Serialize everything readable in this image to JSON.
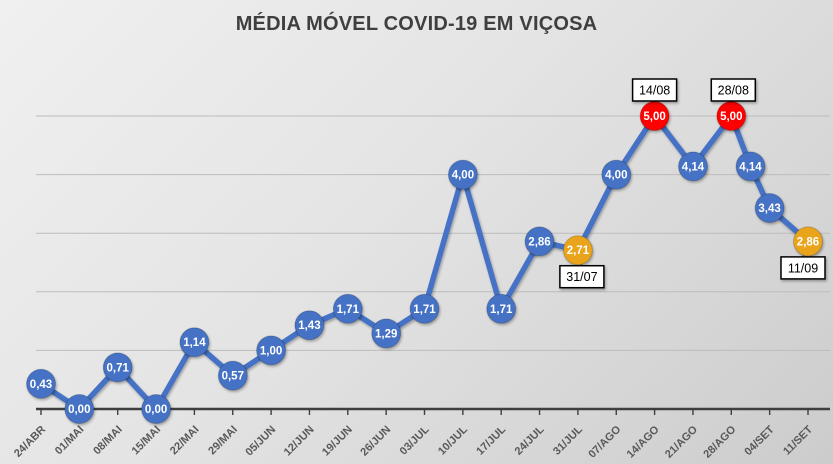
{
  "title": "MÉDIA MÓVEL COVID-19 EM VIÇOSA",
  "colors": {
    "background_light": "#f0f0f0",
    "background_dark": "#cccccc",
    "title_text": "#3f3f3f",
    "line": "#4472C4",
    "marker_blue": "#4472C4",
    "marker_red": "#FF0000",
    "marker_orange": "#E9A41A",
    "point_label": "#FFFFFF",
    "axis": "#3f3f3f",
    "axis_text": "#595959",
    "gridline": "#bcbcbc",
    "leader": "#666666",
    "callout_bg": "#FFFFFF",
    "callout_border": "#000000",
    "callout_text": "#000000"
  },
  "chart_data": {
    "type": "line",
    "title": "MÉDIA MÓVEL COVID-19 EM VIÇOSA",
    "xlabel": "",
    "ylabel": "",
    "ylim": [
      0,
      6
    ],
    "grid": "horizontal",
    "gridlines_at": [
      1,
      2,
      3,
      4,
      5
    ],
    "legend": "none",
    "x_tick_labels": [
      "24/ABR",
      "01/MAI",
      "08/MAI",
      "15/MAI",
      "22/MAI",
      "29/MAI",
      "05/JUN",
      "12/JUN",
      "19/JUN",
      "26/JUN",
      "03/JUL",
      "10/JUL",
      "17/JUL",
      "24/JUL",
      "31/JUL",
      "07/AGO",
      "14/AGO",
      "21/AGO",
      "28/AGO",
      "04/SET",
      "11/SET"
    ],
    "series": [
      {
        "name": "média móvel COVID-19",
        "points": [
          {
            "x": 0,
            "value": 0.43,
            "label": "0,43",
            "color": "blue"
          },
          {
            "x": 1,
            "value": 0.0,
            "label": "0,00",
            "color": "blue"
          },
          {
            "x": 2,
            "value": 0.71,
            "label": "0,71",
            "color": "blue"
          },
          {
            "x": 3,
            "value": 0.0,
            "label": "0,00",
            "color": "blue"
          },
          {
            "x": 4,
            "value": 1.14,
            "label": "1,14",
            "color": "blue"
          },
          {
            "x": 5,
            "value": 0.57,
            "label": "0,57",
            "color": "blue"
          },
          {
            "x": 6,
            "value": 1.0,
            "label": "1,00",
            "color": "blue"
          },
          {
            "x": 7,
            "value": 1.43,
            "label": "1,43",
            "color": "blue"
          },
          {
            "x": 8,
            "value": 1.71,
            "label": "1,71",
            "color": "blue"
          },
          {
            "x": 9,
            "value": 1.29,
            "label": "1,29",
            "color": "blue"
          },
          {
            "x": 10,
            "value": 1.71,
            "label": "1,71",
            "color": "blue"
          },
          {
            "x": 11,
            "value": 4.0,
            "label": "4,00",
            "color": "blue"
          },
          {
            "x": 12,
            "value": 1.71,
            "label": "1,71",
            "color": "blue"
          },
          {
            "x": 13,
            "value": 2.86,
            "label": "2,86",
            "color": "blue"
          },
          {
            "x": 14,
            "value": 2.71,
            "label": "2,71",
            "color": "orange",
            "callout": {
              "text": "31/07",
              "position": "below",
              "dx": 4
            }
          },
          {
            "x": 15,
            "value": 4.0,
            "label": "4,00",
            "color": "blue"
          },
          {
            "x": 16,
            "value": 5.0,
            "label": "5,00",
            "color": "red",
            "callout": {
              "text": "14/08",
              "position": "above",
              "dx": 0
            }
          },
          {
            "x": 17,
            "value": 4.14,
            "label": "4,14",
            "color": "blue"
          },
          {
            "x": 18,
            "value": 5.0,
            "label": "5,00",
            "color": "red",
            "callout": {
              "text": "28/08",
              "position": "above",
              "dx": 2
            }
          },
          {
            "x": 18.5,
            "value": 4.14,
            "label": "4,14",
            "color": "blue"
          },
          {
            "x": 19,
            "value": 3.43,
            "label": "3,43",
            "color": "blue"
          },
          {
            "x": 20,
            "value": 2.86,
            "label": "2,86",
            "color": "orange",
            "callout": {
              "text": "11/09",
              "position": "below",
              "dx": -5
            }
          }
        ]
      }
    ]
  }
}
